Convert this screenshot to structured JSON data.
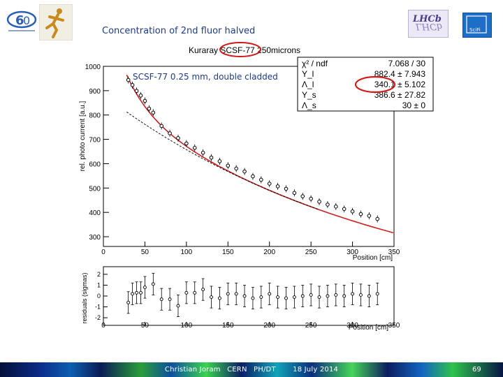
{
  "slide": {
    "title": "Concentration of 2nd fluor halved",
    "annotation": "SCSF-77 0.25 mm, double cladded",
    "page_number": "69"
  },
  "footer": {
    "author": "Christian Joram",
    "org": "CERN",
    "dept": "PH/DT",
    "date": "18 July 2014"
  },
  "logos": [
    "cern-60-logo",
    "runner-logo",
    "lhcb-logo",
    "scifi-logo"
  ],
  "colors": {
    "fit": "#cc1f1f",
    "highlight": "#d11a1a",
    "data": "#000000",
    "title": "#1f3a8a"
  },
  "chart_data": [
    {
      "type": "scatter",
      "title": "Kuraray SCSF-77 250microns",
      "xlabel": "Position [cm]",
      "ylabel": "rel. photo current [a.u.]",
      "xlim": [
        0,
        350
      ],
      "ylim": [
        260,
        1000
      ],
      "xticks": [
        0,
        50,
        100,
        150,
        200,
        250,
        300,
        350
      ],
      "yticks": [
        300,
        400,
        500,
        600,
        700,
        800,
        900,
        1000
      ],
      "series": [
        {
          "name": "data",
          "x": [
            30,
            35,
            40,
            45,
            50,
            55,
            60,
            70,
            80,
            90,
            100,
            110,
            120,
            130,
            140,
            150,
            160,
            170,
            180,
            190,
            200,
            210,
            220,
            230,
            240,
            250,
            260,
            270,
            280,
            290,
            300,
            310,
            320,
            330
          ],
          "y": [
            944,
            923,
            899,
            880,
            858,
            826,
            810,
            755,
            725,
            705,
            683,
            665,
            645,
            625,
            610,
            592,
            580,
            568,
            548,
            534,
            518,
            507,
            497,
            480,
            466,
            456,
            444,
            432,
            424,
            414,
            404,
            393,
            386,
            373
          ]
        }
      ],
      "stats": {
        "rows": [
          [
            "χ² / ndf",
            "7.068 / 30"
          ],
          [
            "Y_l",
            "882.4 ± 7.943"
          ],
          [
            "Λ_l",
            "340.1 ± 5.102"
          ],
          [
            "Y_s",
            "386.6 ± 27.82"
          ],
          [
            "Λ_s",
            "30 ± 0"
          ]
        ],
        "highlight_row": 2
      }
    },
    {
      "type": "scatter",
      "xlabel": "Position [cm]",
      "ylabel": "residuals (sigmas)",
      "xlim": [
        0,
        350
      ],
      "ylim": [
        -2.7,
        2.7
      ],
      "xticks": [
        0,
        50,
        100,
        150,
        200,
        250,
        300,
        350
      ],
      "yticks": [
        -2,
        -1,
        0,
        1,
        2
      ],
      "series": [
        {
          "name": "residuals",
          "x": [
            30,
            35,
            40,
            45,
            50,
            60,
            70,
            80,
            90,
            100,
            110,
            120,
            130,
            140,
            150,
            160,
            170,
            180,
            190,
            200,
            210,
            220,
            230,
            240,
            250,
            260,
            270,
            280,
            290,
            300,
            310,
            320,
            330
          ],
          "y": [
            -0.6,
            0.2,
            0.3,
            0.3,
            0.8,
            1.1,
            -0.3,
            -0.3,
            -0.9,
            0.3,
            0.3,
            0.6,
            -0.1,
            -0.2,
            0.2,
            0.2,
            0.0,
            -0.2,
            -0.1,
            0.2,
            -0.1,
            -0.2,
            -0.1,
            0.0,
            0.1,
            -0.1,
            0.0,
            0.1,
            0.0,
            0.2,
            0.1,
            0.0,
            0.2
          ]
        }
      ]
    }
  ]
}
